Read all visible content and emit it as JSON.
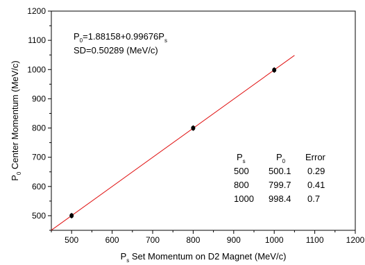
{
  "chart_data": {
    "type": "scatter",
    "x": [
      500,
      800,
      1000
    ],
    "y": [
      500.1,
      799.7,
      998.4
    ],
    "xlim": [
      450,
      1200
    ],
    "ylim": [
      450,
      1200
    ],
    "x_ticks": [
      500,
      600,
      700,
      800,
      900,
      1000,
      1100,
      1200
    ],
    "y_ticks": [
      500,
      600,
      700,
      800,
      900,
      1000,
      1100,
      1200
    ],
    "grid": false,
    "fit": {
      "intercept": 1.88158,
      "slope": 0.99676,
      "x_range": [
        450,
        1050
      ],
      "color": "#e01010"
    },
    "equation": {
      "line1_left": "P",
      "line1_sub": "0",
      "line1_mid": "=1.88158+0.99676P",
      "line1_sub2": "s",
      "line2": "SD=0.50289 (MeV/c)"
    },
    "xlabel": {
      "prefix": "P",
      "sub": "s",
      "rest": " Set Momentum on D2 Magnet (MeV/c)"
    },
    "ylabel": {
      "prefix": "P",
      "sub": "0",
      "rest": " Center Momentum (MeV/c)"
    },
    "table": {
      "header_ps": "P",
      "header_ps_sub": "s",
      "header_p0": "P",
      "header_p0_sub": "0",
      "header_err": "Error",
      "rows": [
        {
          "ps": "500",
          "p0": "500.1",
          "err": "0.29"
        },
        {
          "ps": "800",
          "p0": "799.7",
          "err": "0.41"
        },
        {
          "ps": "1000",
          "p0": "998.4",
          "err": "0.7"
        }
      ]
    },
    "marker_color": "#000000"
  }
}
